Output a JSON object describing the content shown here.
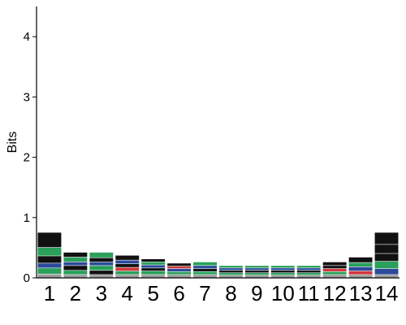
{
  "chart_data": {
    "type": "sequence-logo",
    "ylabel": "Bits",
    "ylim": [
      0,
      4.5
    ],
    "yticks": [
      "0",
      "1",
      "2",
      "3",
      "4"
    ],
    "positions": [
      "1",
      "2",
      "3",
      "4",
      "5",
      "6",
      "7",
      "8",
      "9",
      "10",
      "11",
      "12",
      "13",
      "14"
    ],
    "column_heights": [
      0.75,
      0.42,
      0.42,
      0.37,
      0.31,
      0.24,
      0.26,
      0.2,
      0.2,
      0.2,
      0.2,
      0.26,
      0.34,
      0.75
    ],
    "grid": false,
    "colors": {
      "dark": "#111111",
      "green": "#2aa05a",
      "blue": "#2b4a9a",
      "red": "#d0383c",
      "gray": "#9a9a9a"
    },
    "stacks": [
      [
        [
          "gray",
          0.06
        ],
        [
          "green",
          0.1
        ],
        [
          "blue",
          0.08
        ],
        [
          "dark",
          0.12
        ],
        [
          "green",
          0.14
        ],
        [
          "dark",
          0.25
        ]
      ],
      [
        [
          "gray",
          0.05
        ],
        [
          "green",
          0.07
        ],
        [
          "dark",
          0.08
        ],
        [
          "blue",
          0.06
        ],
        [
          "green",
          0.08
        ],
        [
          "dark",
          0.08
        ]
      ],
      [
        [
          "gray",
          0.05
        ],
        [
          "dark",
          0.07
        ],
        [
          "green",
          0.08
        ],
        [
          "blue",
          0.06
        ],
        [
          "dark",
          0.07
        ],
        [
          "green",
          0.09
        ]
      ],
      [
        [
          "gray",
          0.05
        ],
        [
          "green",
          0.06
        ],
        [
          "red",
          0.06
        ],
        [
          "dark",
          0.06
        ],
        [
          "blue",
          0.06
        ],
        [
          "dark",
          0.08
        ]
      ],
      [
        [
          "gray",
          0.05
        ],
        [
          "green",
          0.06
        ],
        [
          "dark",
          0.05
        ],
        [
          "blue",
          0.05
        ],
        [
          "green",
          0.05
        ],
        [
          "dark",
          0.05
        ]
      ],
      [
        [
          "gray",
          0.05
        ],
        [
          "green",
          0.05
        ],
        [
          "blue",
          0.05
        ],
        [
          "red",
          0.04
        ],
        [
          "dark",
          0.05
        ]
      ],
      [
        [
          "gray",
          0.05
        ],
        [
          "green",
          0.05
        ],
        [
          "dark",
          0.05
        ],
        [
          "blue",
          0.05
        ],
        [
          "green",
          0.06
        ]
      ],
      [
        [
          "gray",
          0.04
        ],
        [
          "green",
          0.04
        ],
        [
          "dark",
          0.04
        ],
        [
          "blue",
          0.04
        ],
        [
          "green",
          0.04
        ]
      ],
      [
        [
          "gray",
          0.04
        ],
        [
          "green",
          0.04
        ],
        [
          "dark",
          0.04
        ],
        [
          "blue",
          0.04
        ],
        [
          "green",
          0.04
        ]
      ],
      [
        [
          "gray",
          0.04
        ],
        [
          "green",
          0.04
        ],
        [
          "dark",
          0.04
        ],
        [
          "blue",
          0.04
        ],
        [
          "green",
          0.04
        ]
      ],
      [
        [
          "gray",
          0.04
        ],
        [
          "green",
          0.04
        ],
        [
          "dark",
          0.04
        ],
        [
          "blue",
          0.04
        ],
        [
          "green",
          0.04
        ]
      ],
      [
        [
          "gray",
          0.05
        ],
        [
          "green",
          0.05
        ],
        [
          "red",
          0.05
        ],
        [
          "dark",
          0.05
        ],
        [
          "dark",
          0.06
        ]
      ],
      [
        [
          "gray",
          0.05
        ],
        [
          "red",
          0.06
        ],
        [
          "blue",
          0.07
        ],
        [
          "green",
          0.07
        ],
        [
          "dark",
          0.09
        ]
      ],
      [
        [
          "gray",
          0.05
        ],
        [
          "blue",
          0.1
        ],
        [
          "green",
          0.12
        ],
        [
          "dark",
          0.13
        ],
        [
          "dark",
          0.15
        ],
        [
          "dark",
          0.2
        ]
      ]
    ]
  }
}
